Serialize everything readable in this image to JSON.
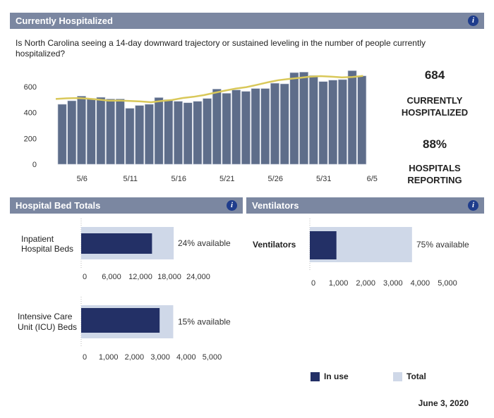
{
  "header": {
    "title": "Currently Hospitalized",
    "info_icon": "info-icon"
  },
  "question": "Is North Carolina seeing a 14-day downward trajectory or sustained leveling in the number of people currently hospitalized?",
  "stats": {
    "current_value": "684",
    "current_label": "CURRENTLY HOSPITALIZED",
    "reporting_value": "88%",
    "reporting_label": "HOSPITALS REPORTING"
  },
  "beds_panel": {
    "title": "Hospital Bed Totals"
  },
  "vent_panel": {
    "title": "Ventilators"
  },
  "legend": {
    "in_use": "In use",
    "total": "Total"
  },
  "date": "June 3, 2020",
  "colors": {
    "bar": "#5e6d8a",
    "line": "#d9c85a",
    "in_use": "#233066",
    "total": "#cfd8e8",
    "header": "#7b87a1"
  },
  "chart_data": [
    {
      "type": "bar",
      "title": "",
      "categories": [
        "5/4",
        "5/5",
        "5/6",
        "5/7",
        "5/8",
        "5/9",
        "5/10",
        "5/11",
        "5/12",
        "5/13",
        "5/14",
        "5/15",
        "5/16",
        "5/17",
        "5/18",
        "5/19",
        "5/20",
        "5/21",
        "5/22",
        "5/23",
        "5/24",
        "5/25",
        "5/26",
        "5/27",
        "5/28",
        "5/29",
        "5/30",
        "5/31",
        "6/1",
        "6/2",
        "6/3",
        "6/4"
      ],
      "values": [
        464,
        491,
        527,
        509,
        518,
        505,
        505,
        433,
        455,
        464,
        516,
        500,
        487,
        476,
        487,
        509,
        582,
        549,
        575,
        564,
        586,
        586,
        627,
        622,
        709,
        713,
        687,
        640,
        651,
        655,
        724,
        684
      ],
      "line_values": [
        505,
        510,
        512,
        508,
        500,
        492,
        493,
        490,
        486,
        480,
        490,
        498,
        513,
        522,
        535,
        553,
        570,
        586,
        597,
        615,
        634,
        650,
        660,
        668,
        678,
        682,
        678,
        672,
        675,
        684
      ],
      "line_start_index": 0,
      "yticks": [
        0,
        200,
        400,
        600
      ],
      "xticks": [
        "5/6",
        "5/11",
        "5/16",
        "5/21",
        "5/26",
        "5/31",
        "6/5"
      ],
      "ylim": [
        0,
        750
      ],
      "grid": false
    },
    {
      "type": "bar",
      "orientation": "horizontal",
      "category": "Inpatient Hospital Beds",
      "in_use": 14400,
      "total": 18900,
      "annotation": "24% available",
      "xticks": [
        "0",
        "6,000",
        "12,000",
        "18,000",
        "24,000"
      ],
      "xlim": [
        0,
        24000
      ]
    },
    {
      "type": "bar",
      "orientation": "horizontal",
      "category": "Intensive Care Unit (ICU) Beds",
      "in_use": 2975,
      "total": 3500,
      "annotation": "15% available",
      "xticks": [
        "0",
        "1,000",
        "2,000",
        "3,000",
        "4,000",
        "5,000"
      ],
      "xlim": [
        0,
        5000
      ]
    },
    {
      "type": "bar",
      "orientation": "horizontal",
      "category": "Ventilators",
      "in_use": 925,
      "total": 3700,
      "annotation": "75% available",
      "xticks": [
        "0",
        "1,000",
        "2,000",
        "3,000",
        "4,000",
        "5,000"
      ],
      "xlim": [
        0,
        5000
      ]
    }
  ]
}
